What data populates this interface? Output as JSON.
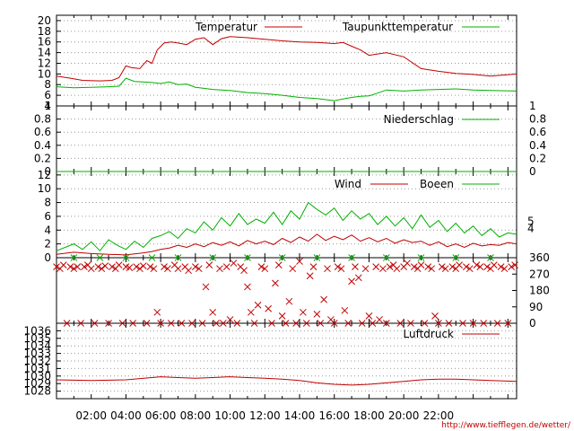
{
  "chart_data": [
    {
      "type": "line",
      "x_unit": "hours",
      "xlim": [
        0,
        26.5
      ],
      "ylim": [
        4,
        21
      ],
      "yticks": [
        "4",
        "6",
        "8",
        "10",
        "12",
        "14",
        "16",
        "18",
        "20"
      ],
      "legend": [
        "Temperatur",
        "Taupunkttemperatur"
      ],
      "series": [
        {
          "name": "Temperatur",
          "color": "#c00000",
          "x": [
            0,
            0.8,
            1.5,
            2.5,
            3.2,
            3.6,
            4.0,
            4.3,
            4.8,
            5.2,
            5.5,
            5.8,
            6.2,
            6.6,
            7,
            7.5,
            8,
            8.5,
            9,
            9.5,
            10,
            11,
            12,
            13,
            14,
            15,
            16,
            16.5,
            17,
            17.5,
            18,
            19,
            20,
            21,
            22,
            23,
            24,
            25,
            26.5
          ],
          "y": [
            9.6,
            9.2,
            8.8,
            8.7,
            8.8,
            9.3,
            11.5,
            11.2,
            11.0,
            12.5,
            12.0,
            14.5,
            15.8,
            16.0,
            15.8,
            15.5,
            16.5,
            16.8,
            15.5,
            16.6,
            17.0,
            16.8,
            16.5,
            16.2,
            16.0,
            15.9,
            15.7,
            15.9,
            15.2,
            14.5,
            13.5,
            14.0,
            13.2,
            11.0,
            10.5,
            10.1,
            9.9,
            9.6,
            10.0
          ]
        },
        {
          "name": "Taupunkttemperatur",
          "color": "#00b000",
          "x": [
            0,
            1,
            2,
            3,
            3.6,
            4.0,
            4.5,
            5,
            5.5,
            6,
            6.5,
            7,
            7.5,
            8,
            8.5,
            9,
            10,
            11,
            12,
            13,
            14,
            15,
            16,
            16.5,
            17,
            17.5,
            18,
            18.5,
            19,
            20,
            21,
            22,
            23,
            24,
            25,
            26.5
          ],
          "y": [
            7.6,
            7.4,
            7.5,
            7.6,
            7.7,
            9.2,
            8.6,
            8.5,
            8.4,
            8.2,
            8.5,
            8.0,
            8.1,
            7.5,
            7.3,
            7.1,
            6.9,
            6.5,
            6.3,
            6.0,
            5.6,
            5.4,
            5.0,
            5.3,
            5.6,
            5.8,
            5.9,
            6.4,
            7.0,
            6.8,
            7.0,
            7.1,
            7.2,
            7.0,
            6.9,
            6.8
          ]
        }
      ]
    },
    {
      "type": "line",
      "x_unit": "hours",
      "xlim": [
        0,
        26.5
      ],
      "ylim": [
        0,
        1
      ],
      "yticks": [
        "0",
        "0.2",
        "0.4",
        "0.6",
        "0.8",
        "1"
      ],
      "legend": [
        "Niederschlag"
      ],
      "series": [
        {
          "name": "Niederschlag",
          "color": "#00b000",
          "x": [
            0,
            26.5
          ],
          "y": [
            0,
            0
          ]
        }
      ]
    },
    {
      "type": "line",
      "x_unit": "hours",
      "xlim": [
        0,
        26.5
      ],
      "ylim": [
        0,
        12.5
      ],
      "yticks": [
        "0",
        "2",
        "4",
        "6",
        "8",
        "10",
        "12"
      ],
      "right_ticks": [
        "4",
        "5"
      ],
      "legend": [
        "Wind",
        "Boeen"
      ],
      "series": [
        {
          "name": "Wind",
          "color": "#c00000",
          "x": [
            0,
            1,
            2,
            3,
            4,
            5,
            5.5,
            6,
            6.5,
            7,
            7.5,
            8,
            8.5,
            9,
            9.5,
            10,
            10.5,
            11,
            11.5,
            12,
            12.5,
            13,
            13.5,
            14,
            14.5,
            15,
            15.5,
            16,
            16.5,
            17,
            17.5,
            18,
            18.5,
            19,
            19.5,
            20,
            20.5,
            21,
            21.5,
            22,
            22.5,
            23,
            23.5,
            24,
            24.5,
            25,
            25.5,
            26,
            26.5
          ],
          "y": [
            0.5,
            0.8,
            0.6,
            0.5,
            0.4,
            0.7,
            0.9,
            1.2,
            1.4,
            1.8,
            1.5,
            2.0,
            1.6,
            2.2,
            1.8,
            2.3,
            1.7,
            2.5,
            2.0,
            2.4,
            1.9,
            2.8,
            2.2,
            3.0,
            2.4,
            3.4,
            2.5,
            3.1,
            2.6,
            3.3,
            2.4,
            2.9,
            2.3,
            2.8,
            2.1,
            2.6,
            2.2,
            2.4,
            1.8,
            2.3,
            1.6,
            2.0,
            1.5,
            2.1,
            1.7,
            1.9,
            1.8,
            2.2,
            2.0
          ]
        },
        {
          "name": "Boeen",
          "color": "#00b000",
          "x": [
            0,
            1,
            1.5,
            2,
            2.5,
            3,
            3.5,
            4,
            4.5,
            5,
            5.5,
            6,
            6.5,
            7,
            7.5,
            8,
            8.5,
            9,
            9.5,
            10,
            10.5,
            11,
            11.5,
            12,
            12.5,
            13,
            13.5,
            14,
            14.5,
            15,
            15.5,
            16,
            16.5,
            17,
            17.5,
            18,
            18.5,
            19,
            19.5,
            20,
            20.5,
            21,
            21.5,
            22,
            22.5,
            23,
            23.5,
            24,
            24.5,
            25,
            25.5,
            26,
            26.5
          ],
          "y": [
            1.0,
            2.0,
            1.2,
            2.3,
            1.0,
            2.6,
            1.8,
            1.2,
            2.4,
            1.5,
            2.8,
            3.2,
            3.8,
            2.8,
            4.2,
            3.6,
            5.2,
            4.0,
            5.8,
            4.6,
            6.4,
            4.8,
            5.6,
            5.0,
            6.6,
            4.8,
            6.8,
            5.6,
            8.0,
            7.0,
            6.2,
            7.2,
            5.4,
            6.8,
            5.6,
            6.4,
            4.8,
            6.0,
            4.6,
            5.8,
            4.2,
            6.2,
            4.4,
            5.4,
            3.8,
            5.0,
            3.6,
            4.6,
            3.2,
            4.2,
            3.0,
            3.6,
            3.4
          ]
        }
      ]
    },
    {
      "type": "scatter",
      "x_unit": "hours",
      "xlim": [
        0,
        26.5
      ],
      "ylim": [
        0,
        360
      ],
      "yticks_right": [
        "0",
        "90",
        "180",
        "270",
        "360"
      ],
      "series": [
        {
          "name": "",
          "color": "#c00000",
          "marker": "x",
          "x": [
            0,
            0.2,
            0.4,
            0.6,
            0.8,
            1,
            1.2,
            1.4,
            1.6,
            1.8,
            2,
            2.2,
            2.4,
            2.6,
            2.8,
            3,
            3.2,
            3.4,
            3.6,
            3.8,
            4,
            4.2,
            4.4,
            4.6,
            4.8,
            5,
            5.2,
            5.4,
            5.6,
            5.8,
            6,
            6.2,
            6.4,
            6.6,
            6.8,
            7,
            7.2,
            7.4,
            7.6,
            7.8,
            8,
            8.2,
            8.4,
            8.6,
            8.8,
            9,
            9.2,
            9.4,
            9.6,
            9.8,
            10,
            10.2,
            10.4,
            10.6,
            10.8,
            11,
            11.2,
            11.4,
            11.6,
            11.8,
            12,
            12.2,
            12.4,
            12.6,
            12.8,
            13,
            13.2,
            13.4,
            13.6,
            13.8,
            14,
            14.2,
            14.4,
            14.6,
            14.8,
            15,
            15.2,
            15.4,
            15.6,
            15.8,
            16,
            16.2,
            16.4,
            16.6,
            16.8,
            17,
            17.2,
            17.4,
            17.6,
            17.8,
            18,
            18.2,
            18.4,
            18.6,
            18.8,
            19,
            19.2,
            19.4,
            19.6,
            19.8,
            20,
            20.2,
            20.4,
            20.6,
            20.8,
            21,
            21.2,
            21.4,
            21.6,
            21.8,
            22,
            22.2,
            22.4,
            22.6,
            22.8,
            23,
            23.2,
            23.4,
            23.6,
            23.8,
            24,
            24.2,
            24.4,
            24.6,
            24.8,
            25,
            25.2,
            25.4,
            25.6,
            25.8,
            26,
            26.2,
            26.4
          ],
          "y": [
            310,
            300,
            320,
            0,
            310,
            300,
            310,
            0,
            310,
            320,
            300,
            0,
            310,
            300,
            315,
            0,
            310,
            300,
            320,
            0,
            310,
            305,
            0,
            310,
            300,
            315,
            0,
            310,
            300,
            60,
            0,
            310,
            300,
            0,
            320,
            300,
            0,
            310,
            290,
            0,
            310,
            300,
            0,
            200,
            320,
            60,
            0,
            300,
            0,
            310,
            20,
            330,
            0,
            310,
            290,
            200,
            60,
            0,
            100,
            310,
            300,
            80,
            0,
            220,
            320,
            40,
            0,
            120,
            300,
            0,
            340,
            60,
            0,
            260,
            310,
            50,
            0,
            130,
            300,
            20,
            0,
            310,
            300,
            70,
            0,
            230,
            310,
            250,
            0,
            300,
            40,
            0,
            310,
            20,
            300,
            0,
            310,
            320,
            300,
            0,
            310,
            330,
            0,
            310,
            300,
            320,
            0,
            310,
            300,
            40,
            0,
            310,
            300,
            0,
            310,
            300,
            320,
            0,
            310,
            300,
            0,
            320,
            310,
            0,
            310,
            300,
            320,
            0,
            310,
            300,
            0,
            310,
            320
          ]
        },
        {
          "name": "",
          "color": "#00b000",
          "marker": "x",
          "x": [
            1,
            2.5,
            4,
            5.5,
            7,
            9,
            11,
            13,
            15,
            17,
            19,
            21,
            23,
            25
          ],
          "y": [
            360,
            360,
            360,
            360,
            360,
            360,
            360,
            360,
            360,
            360,
            360,
            360,
            360,
            360
          ]
        }
      ]
    },
    {
      "type": "line",
      "x_unit": "hours",
      "xlim": [
        0,
        26.5
      ],
      "ylim": [
        1027,
        1037
      ],
      "yticks": [
        "1028",
        "1029",
        "1030",
        "1031",
        "1032",
        "1033",
        "1034",
        "1035",
        "1036"
      ],
      "legend": [
        "Luftdruck"
      ],
      "xticks": [
        "02:00",
        "04:00",
        "06:00",
        "08:00",
        "10:00",
        "12:00",
        "14:00",
        "16:00",
        "18:00",
        "20:00",
        "22:00"
      ],
      "series": [
        {
          "name": "Luftdruck",
          "color": "#c00000",
          "x": [
            0,
            2,
            4,
            6,
            7,
            8,
            9,
            10,
            11,
            12,
            13,
            14,
            15,
            16,
            17,
            18,
            19,
            20,
            21,
            22,
            23,
            24,
            25,
            26.5
          ],
          "y": [
            1029.5,
            1029.4,
            1029.5,
            1029.9,
            1029.8,
            1029.7,
            1029.8,
            1029.9,
            1029.8,
            1029.7,
            1029.6,
            1029.4,
            1029.1,
            1028.9,
            1028.8,
            1028.9,
            1029.1,
            1029.3,
            1029.5,
            1029.6,
            1029.6,
            1029.5,
            1029.4,
            1029.3
          ]
        }
      ]
    }
  ],
  "credit": "http://www.tiefflegen.de/wetter/"
}
